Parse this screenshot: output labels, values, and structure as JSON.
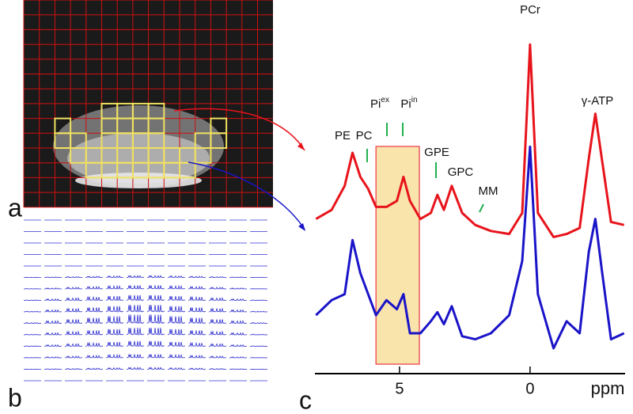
{
  "chart_data": {
    "type": "line",
    "panel_labels": [
      "a",
      "b",
      "c"
    ],
    "xlabel": "ppm",
    "x": [
      8.2,
      7.6,
      7.1,
      6.8,
      6.5,
      6.2,
      5.9,
      5.5,
      5.1,
      4.85,
      4.6,
      4.2,
      3.8,
      3.55,
      3.3,
      3.0,
      2.6,
      2.1,
      1.5,
      0.8,
      0.3,
      0,
      -0.3,
      -0.9,
      -1.4,
      -1.9,
      -2.25,
      -2.5,
      -2.75,
      -3.1,
      -3.6
    ],
    "series": [
      {
        "color": "#e8141c",
        "values": [
          43,
          46,
          54,
          65,
          57,
          53,
          47,
          47,
          49,
          57,
          49,
          43,
          45,
          51,
          46,
          54,
          45,
          41,
          39,
          38,
          45,
          101,
          45,
          37,
          38,
          40,
          63,
          78,
          63,
          42,
          41
        ]
      },
      {
        "color": "#1a14c8",
        "values": [
          11,
          16,
          18,
          36,
          25,
          18,
          11,
          16,
          13,
          18,
          5,
          5,
          9,
          12,
          8,
          14,
          4,
          3,
          5,
          11,
          29,
          67,
          18,
          0,
          9,
          5,
          32,
          43,
          26,
          3,
          5
        ]
      }
    ],
    "xlim": [
      8.24,
      -3.64
    ],
    "xticks": [
      5,
      0
    ],
    "ylim": [
      0,
      105
    ],
    "highlight_range": [
      5.9,
      4.24
    ],
    "annotations": [
      {
        "text": "PE"
      },
      {
        "text": "PC"
      },
      {
        "text": "Pi",
        "sup": "ex"
      },
      {
        "text": "Pi",
        "sup": "in"
      },
      {
        "text": "GPE"
      },
      {
        "text": "GPC"
      },
      {
        "text": "MM"
      },
      {
        "text": "PCr"
      },
      {
        "text": "γ-ATP"
      }
    ]
  }
}
